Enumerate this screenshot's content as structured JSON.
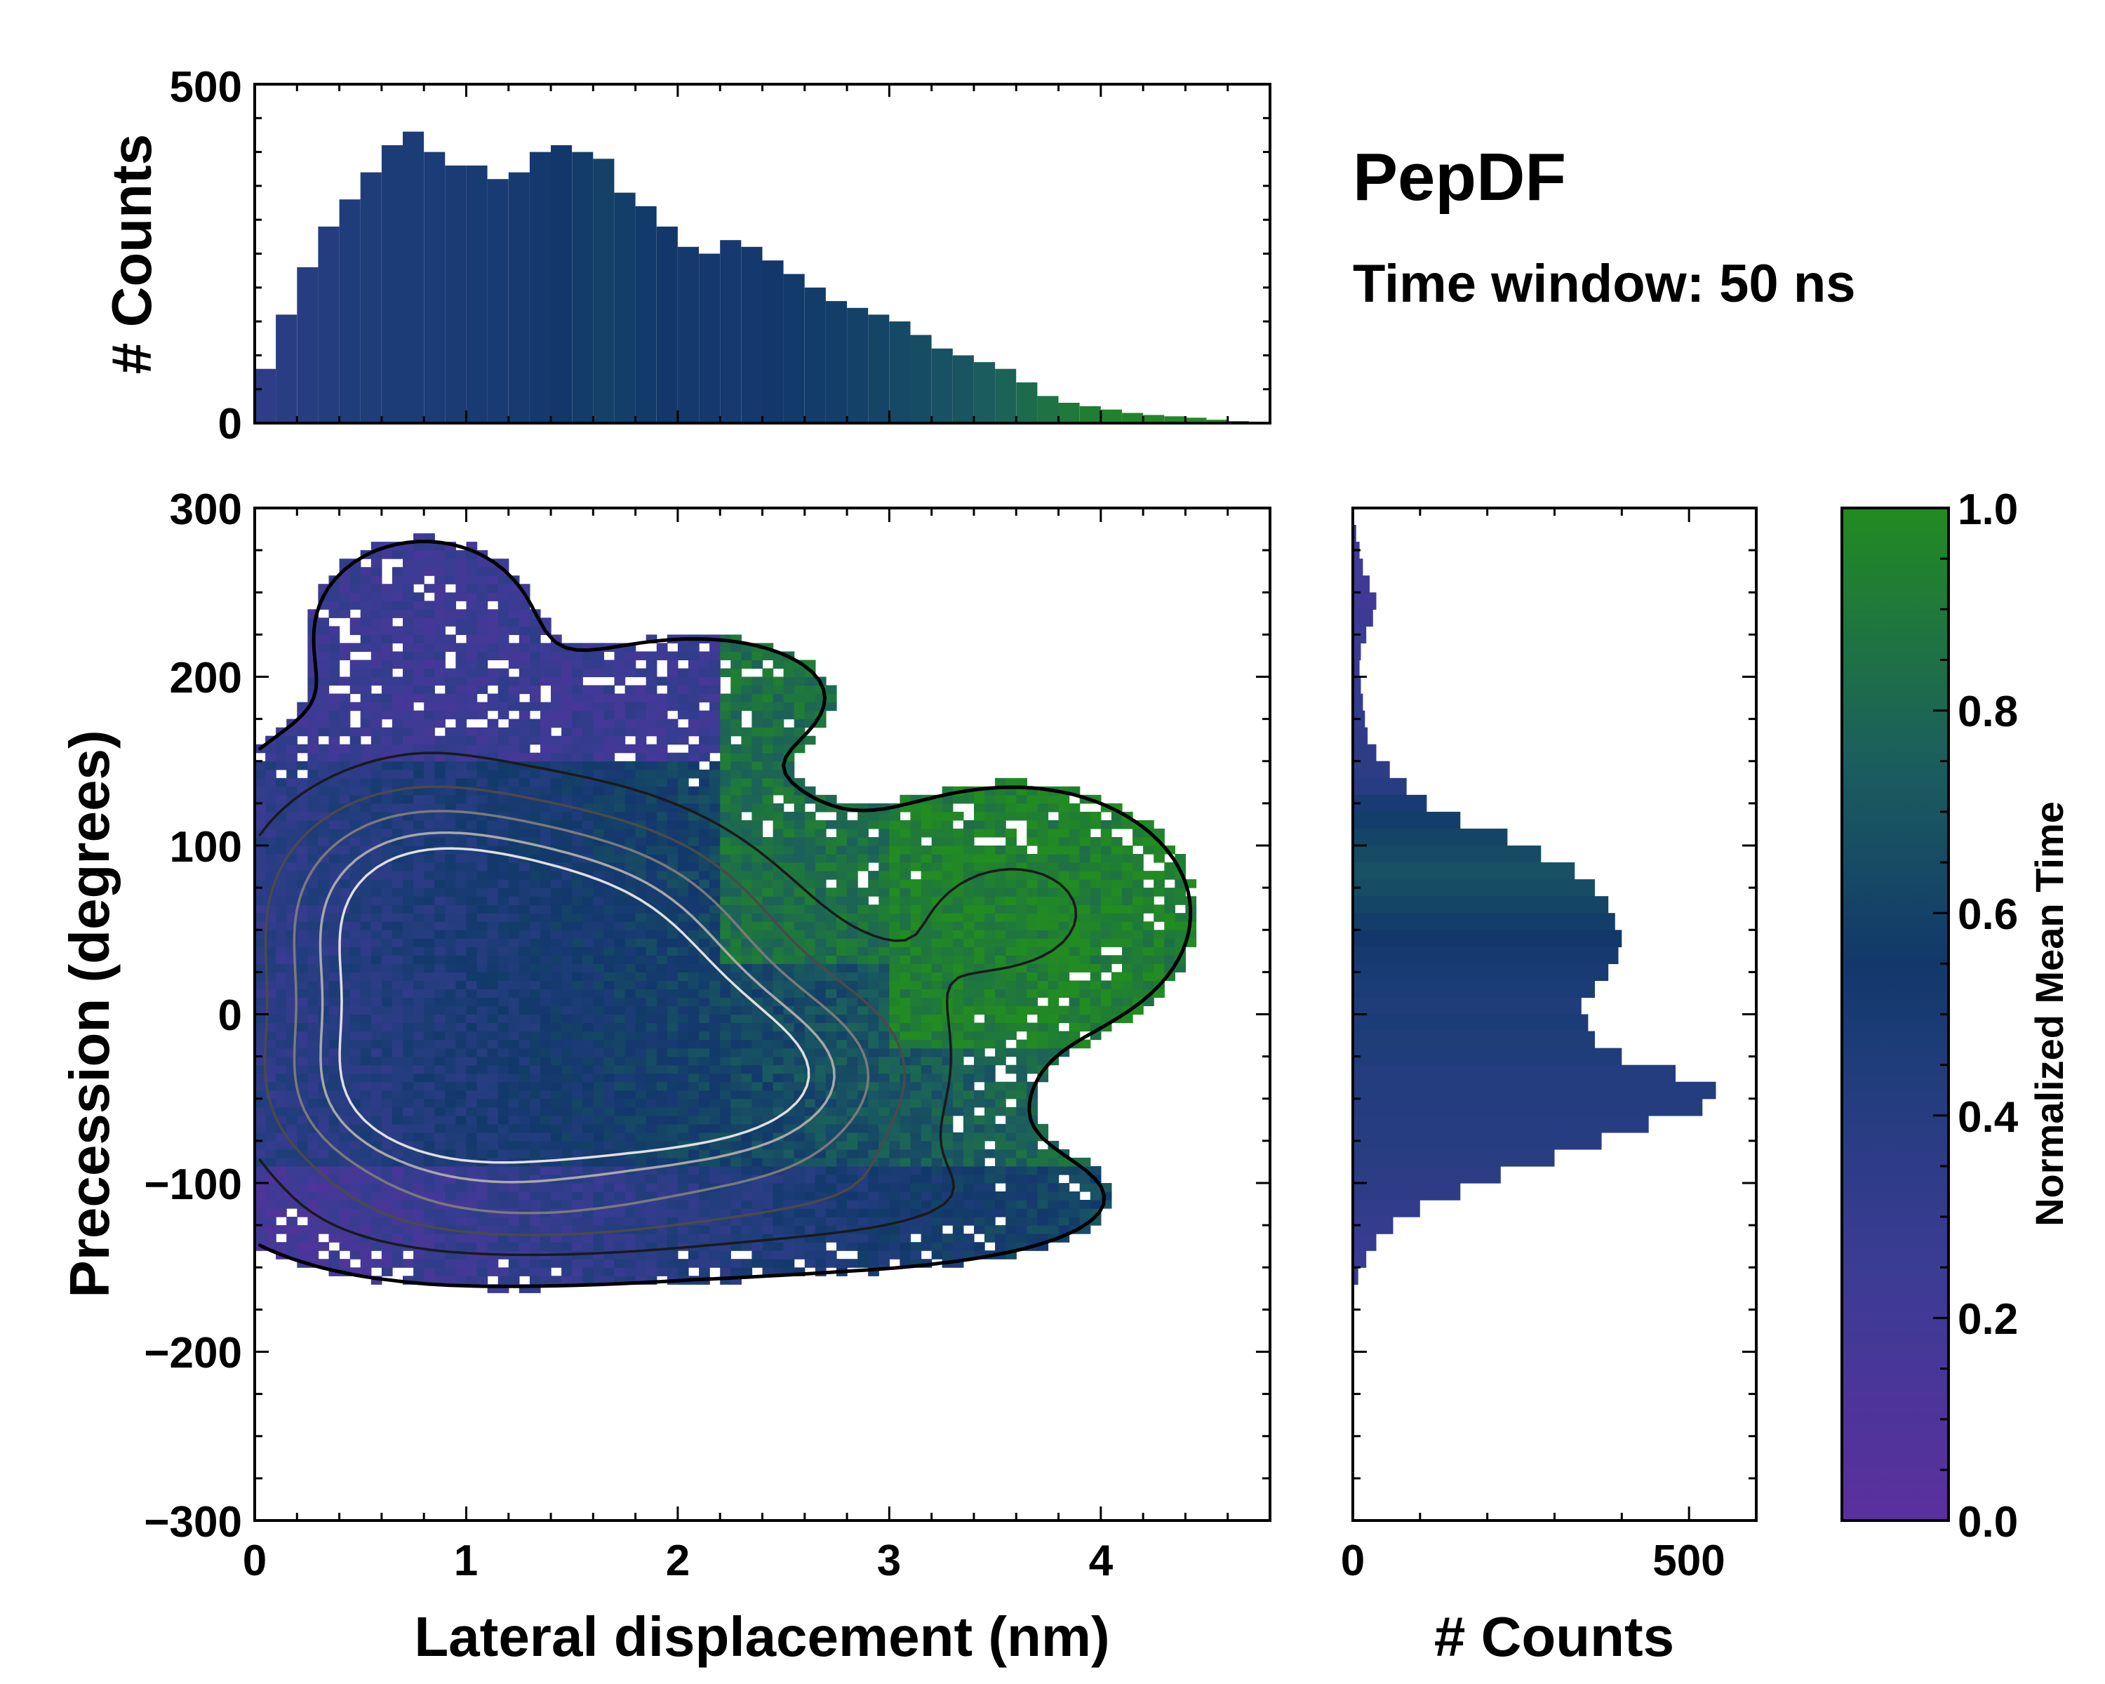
{
  "title": "PepDF",
  "subtitle": "Time window: 50 ns",
  "colors": {
    "purple": "#5b2f9e",
    "blue": "#1f3d7a",
    "navy": "#12386b",
    "teal": "#1b5e5e",
    "green": "#228b22",
    "contour_dark": "#000000",
    "contour_mid": "#6e6e6e",
    "contour_light": "#d8d8d8"
  },
  "chart_data": [
    {
      "id": "top_hist",
      "type": "bar",
      "ylabel": "# Counts",
      "xlim": [
        0,
        4.8
      ],
      "ylim": [
        0,
        500
      ],
      "yticks": [
        "0",
        "500"
      ],
      "x": [
        0.1,
        0.2,
        0.3,
        0.4,
        0.5,
        0.6,
        0.7,
        0.8,
        0.9,
        1.0,
        1.1,
        1.2,
        1.3,
        1.4,
        1.5,
        1.6,
        1.7,
        1.8,
        1.9,
        2.0,
        2.1,
        2.2,
        2.3,
        2.4,
        2.5,
        2.6,
        2.7,
        2.8,
        2.9,
        3.0,
        3.1,
        3.2,
        3.3,
        3.4,
        3.5,
        3.6,
        3.7,
        3.8,
        3.9,
        4.0,
        4.1,
        4.2,
        4.3,
        4.4,
        4.5,
        4.6,
        4.7
      ],
      "values": [
        80,
        160,
        230,
        290,
        330,
        370,
        410,
        430,
        400,
        380,
        380,
        360,
        370,
        400,
        410,
        400,
        390,
        340,
        320,
        290,
        260,
        250,
        270,
        260,
        240,
        220,
        200,
        180,
        170,
        160,
        150,
        130,
        110,
        100,
        90,
        80,
        60,
        40,
        30,
        25,
        20,
        15,
        12,
        10,
        8,
        5,
        3
      ],
      "mean_time": [
        0.35,
        0.38,
        0.4,
        0.42,
        0.44,
        0.46,
        0.47,
        0.48,
        0.48,
        0.49,
        0.5,
        0.5,
        0.51,
        0.53,
        0.55,
        0.57,
        0.6,
        0.58,
        0.56,
        0.55,
        0.54,
        0.53,
        0.52,
        0.53,
        0.55,
        0.56,
        0.57,
        0.58,
        0.6,
        0.62,
        0.64,
        0.66,
        0.68,
        0.7,
        0.74,
        0.78,
        0.82,
        0.86,
        0.9,
        0.93,
        0.95,
        0.97,
        0.98,
        0.98,
        0.99,
        0.99,
        1.0
      ]
    },
    {
      "id": "main_heatmap",
      "type": "heatmap",
      "xlabel": "Lateral displacement (nm)",
      "ylabel": "Precession (degrees)",
      "xlim": [
        0,
        4.8
      ],
      "ylim": [
        -300,
        300
      ],
      "xticks": [
        "0",
        "1",
        "2",
        "3",
        "4"
      ],
      "yticks": [
        "300",
        "200",
        "100",
        "0",
        "−100",
        "−200",
        "−300"
      ],
      "ytick_values": [
        300,
        200,
        100,
        0,
        -100,
        -200,
        -300
      ],
      "xtick_values": [
        0,
        1,
        2,
        3,
        4
      ],
      "bin_width_x": 0.05,
      "bin_width_y": 5,
      "colorbar_label": "Normalized Mean Time",
      "contour_levels": 6
    },
    {
      "id": "right_hist",
      "type": "bar",
      "orientation": "horizontal",
      "xlabel": "# Counts",
      "xlim": [
        0,
        600
      ],
      "xticks": [
        "0",
        "500"
      ],
      "xtick_values": [
        0,
        500
      ],
      "y": [
        285,
        275,
        265,
        255,
        245,
        235,
        225,
        215,
        205,
        195,
        185,
        175,
        165,
        155,
        145,
        135,
        125,
        115,
        105,
        95,
        85,
        75,
        65,
        55,
        45,
        35,
        25,
        15,
        5,
        -5,
        -15,
        -25,
        -35,
        -45,
        -55,
        -65,
        -75,
        -85,
        -95,
        -105,
        -115,
        -125,
        -135,
        -145,
        -155
      ],
      "values": [
        5,
        10,
        15,
        25,
        35,
        30,
        20,
        12,
        10,
        12,
        15,
        18,
        22,
        35,
        55,
        80,
        110,
        160,
        230,
        280,
        330,
        360,
        380,
        390,
        400,
        395,
        380,
        360,
        340,
        350,
        360,
        400,
        480,
        540,
        520,
        440,
        370,
        300,
        220,
        160,
        100,
        60,
        35,
        20,
        8
      ],
      "mean_time": [
        0.22,
        0.22,
        0.22,
        0.22,
        0.22,
        0.24,
        0.25,
        0.26,
        0.28,
        0.3,
        0.3,
        0.32,
        0.33,
        0.34,
        0.36,
        0.4,
        0.5,
        0.58,
        0.62,
        0.65,
        0.68,
        0.66,
        0.62,
        0.58,
        0.55,
        0.52,
        0.5,
        0.48,
        0.46,
        0.47,
        0.46,
        0.44,
        0.42,
        0.42,
        0.41,
        0.4,
        0.4,
        0.38,
        0.36,
        0.34,
        0.32,
        0.3,
        0.28,
        0.26,
        0.25
      ]
    },
    {
      "id": "colorbar",
      "type": "heatmap",
      "label": "Normalized Mean Time",
      "range": [
        0.0,
        1.0
      ],
      "ticks": [
        "0.0",
        "0.2",
        "0.4",
        "0.6",
        "0.8",
        "1.0"
      ],
      "tick_values": [
        0.0,
        0.2,
        0.4,
        0.6,
        0.8,
        1.0
      ]
    }
  ]
}
